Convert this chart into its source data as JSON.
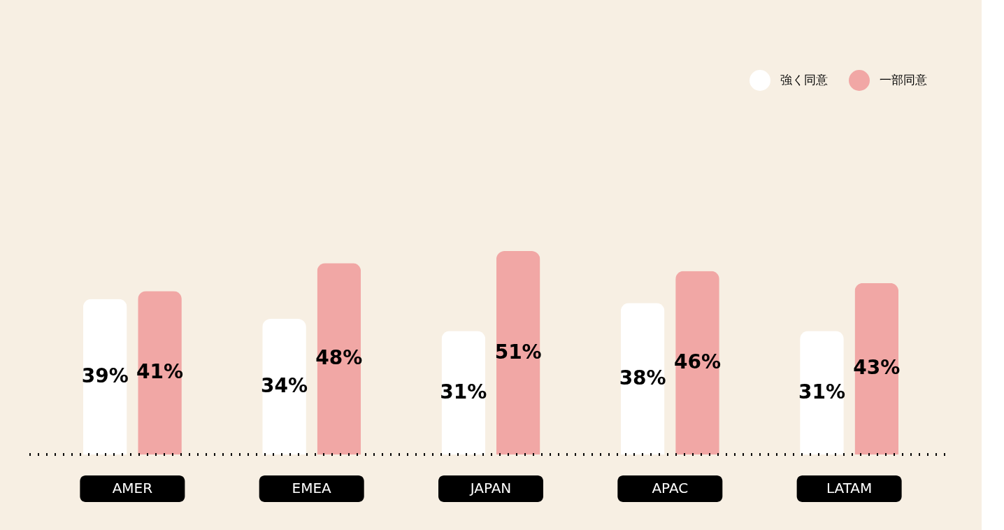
{
  "chart_data": {
    "type": "bar",
    "categories": [
      "AMER",
      "EMEA",
      "JAPAN",
      "APAC",
      "LATAM"
    ],
    "series": [
      {
        "name": "強く同意",
        "color": "#ffffff",
        "values": [
          39,
          34,
          31,
          38,
          31
        ],
        "value_labels": [
          "39%",
          "34%",
          "31%",
          "38%",
          "31%"
        ]
      },
      {
        "name": "一部同意",
        "color": "#f1a7a5",
        "values": [
          41,
          48,
          51,
          46,
          43
        ],
        "value_labels": [
          "41%",
          "48%",
          "51%",
          "46%",
          "43%"
        ]
      }
    ],
    "legend": "top right",
    "grid": false
  }
}
